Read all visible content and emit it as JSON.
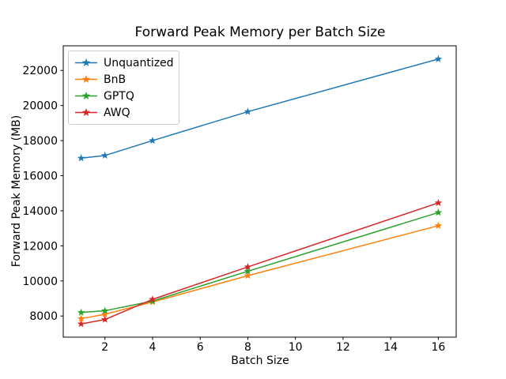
{
  "chart_data": {
    "type": "line",
    "title": "Forward Peak Memory per Batch Size",
    "xlabel": "Batch Size",
    "ylabel": "Forward Peak Memory (MB)",
    "x": [
      1,
      2,
      4,
      8,
      16
    ],
    "series": [
      {
        "name": "Unquantized",
        "color": "#1f77b4",
        "values": [
          17000,
          17150,
          18000,
          19650,
          22650
        ]
      },
      {
        "name": "BnB",
        "color": "#ff7f0e",
        "values": [
          7850,
          8100,
          8800,
          10300,
          13150
        ]
      },
      {
        "name": "GPTQ",
        "color": "#2ca02c",
        "values": [
          8200,
          8300,
          8850,
          10550,
          13900
        ]
      },
      {
        "name": "AWQ",
        "color": "#d62728",
        "values": [
          7550,
          7800,
          8950,
          10800,
          14450
        ]
      }
    ],
    "xticks": [
      2,
      4,
      6,
      8,
      10,
      12,
      14,
      16
    ],
    "yticks": [
      8000,
      10000,
      12000,
      14000,
      16000,
      18000,
      20000,
      22000
    ],
    "xlim": [
      0.25,
      16.75
    ],
    "ylim": [
      6795,
      23405
    ],
    "legend_position": "upper left",
    "grid": false,
    "marker": "star",
    "line_width": 1.5,
    "axis_color": "#000000"
  }
}
